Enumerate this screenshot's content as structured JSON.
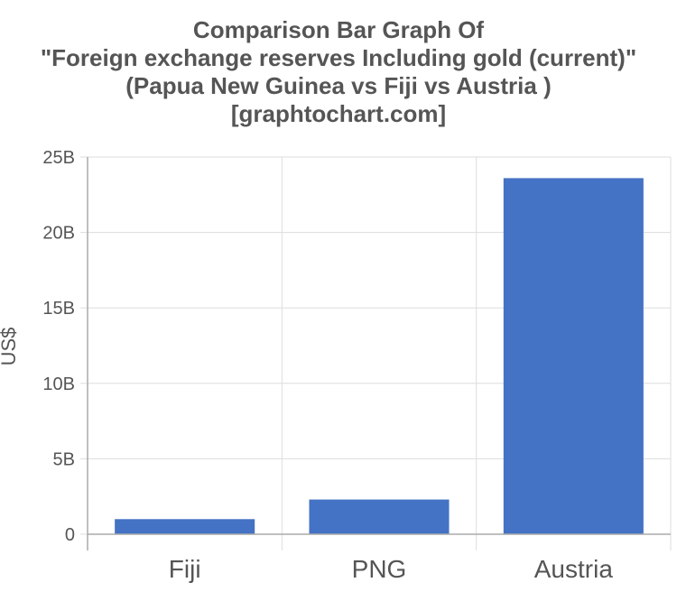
{
  "chart_data": {
    "type": "bar",
    "title_lines": [
      "Comparison Bar Graph Of",
      "\"Foreign exchange reserves Including gold (current)\"",
      "(Papua New Guinea vs Fiji vs Austria )",
      "[graphtochart.com]"
    ],
    "xlabel": "",
    "ylabel": "US$",
    "categories": [
      "Fiji",
      "PNG",
      "Austria"
    ],
    "values": [
      1.0,
      2.3,
      23.6
    ],
    "ylim": [
      0,
      25
    ],
    "yticks": [
      0,
      5,
      10,
      15,
      20,
      25
    ],
    "ytick_labels": [
      "0",
      "5B",
      "10B",
      "15B",
      "20B",
      "25B"
    ],
    "grid": true,
    "legend": "none",
    "bar_color": "#4472c4",
    "grid_color": "#dddddd",
    "axis_color": "#aaaaaa",
    "text_color": "#555555"
  }
}
